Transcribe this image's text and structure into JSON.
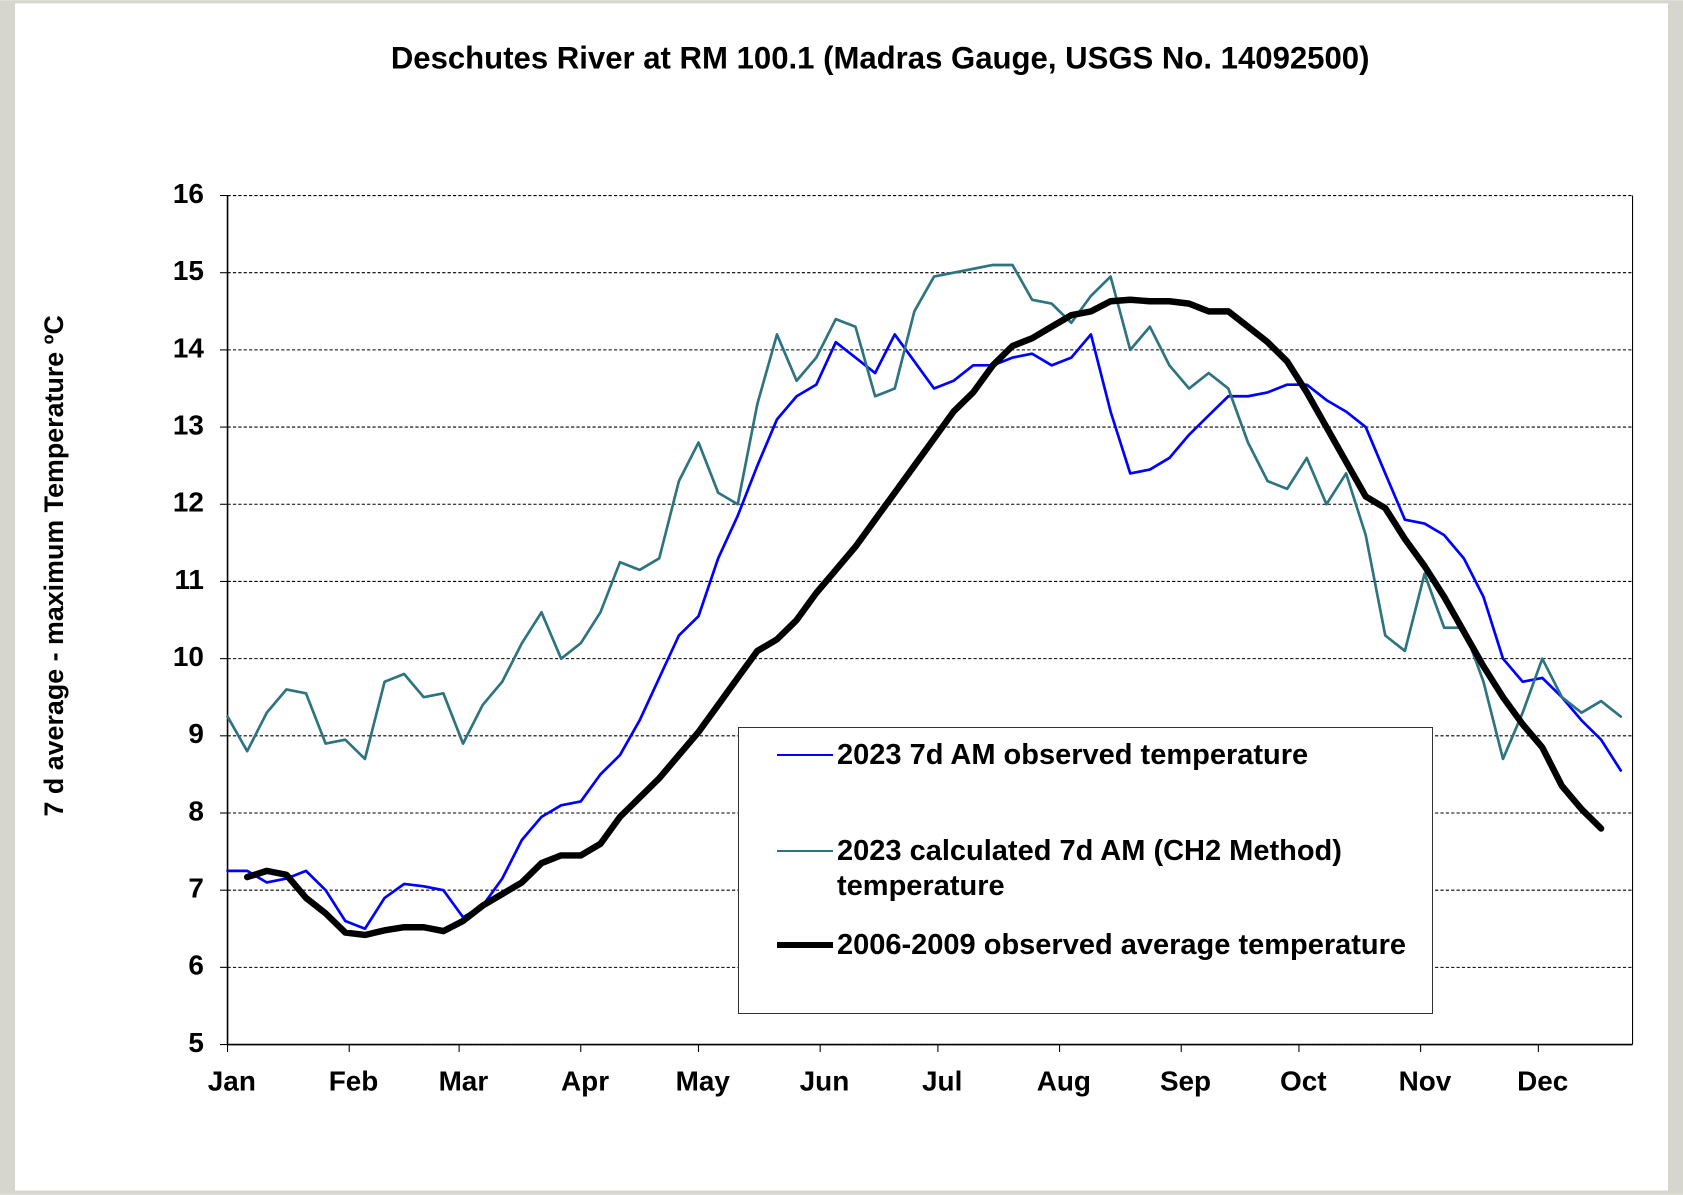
{
  "chart_data": {
    "type": "line",
    "title": "Deschutes River at RM 100.1 (Madras Gauge, USGS No. 14092500)",
    "y_label": "7 d average - maximum Temperature ºC",
    "xlim": [
      0,
      358
    ],
    "xticks": [
      {
        "value": 0,
        "label": "Jan"
      },
      {
        "value": 31,
        "label": "Feb"
      },
      {
        "value": 59,
        "label": "Mar"
      },
      {
        "value": 90,
        "label": "Apr"
      },
      {
        "value": 120,
        "label": "May"
      },
      {
        "value": 151,
        "label": "Jun"
      },
      {
        "value": 181,
        "label": "Jul"
      },
      {
        "value": 212,
        "label": "Aug"
      },
      {
        "value": 243,
        "label": "Sep"
      },
      {
        "value": 273,
        "label": "Oct"
      },
      {
        "value": 304,
        "label": "Nov"
      },
      {
        "value": 334,
        "label": "Dec"
      }
    ],
    "ylim": [
      5,
      16
    ],
    "yticks": [
      5,
      6,
      7,
      8,
      9,
      10,
      11,
      12,
      13,
      14,
      15,
      16
    ],
    "grid": true,
    "x": [
      0,
      5,
      10,
      15,
      20,
      25,
      30,
      35,
      40,
      45,
      50,
      55,
      60,
      65,
      70,
      75,
      80,
      85,
      90,
      95,
      100,
      105,
      110,
      115,
      120,
      125,
      130,
      135,
      140,
      145,
      150,
      155,
      160,
      165,
      170,
      175,
      180,
      185,
      190,
      195,
      200,
      205,
      210,
      215,
      220,
      225,
      230,
      235,
      240,
      245,
      250,
      255,
      260,
      265,
      270,
      275,
      280,
      285,
      290,
      295,
      300,
      305,
      310,
      315,
      320,
      325,
      330,
      335,
      340,
      345,
      350,
      355
    ],
    "series": [
      {
        "name": "2023 7d AM observed temperature",
        "color": "#0000ff",
        "width": 2.5,
        "values": [
          7.25,
          7.25,
          7.1,
          7.15,
          7.25,
          7.0,
          6.6,
          6.5,
          6.9,
          7.08,
          7.05,
          7.0,
          6.65,
          6.8,
          7.15,
          7.65,
          7.95,
          8.1,
          8.15,
          8.5,
          8.75,
          9.2,
          9.75,
          10.3,
          10.55,
          11.3,
          11.85,
          12.5,
          13.1,
          13.4,
          13.55,
          14.1,
          13.9,
          13.7,
          14.2,
          13.85,
          13.5,
          13.6,
          13.8,
          13.8,
          13.9,
          13.95,
          13.8,
          13.9,
          14.2,
          13.2,
          12.4,
          12.45,
          12.6,
          12.9,
          13.15,
          13.4,
          13.4,
          13.45,
          13.55,
          13.55,
          13.35,
          13.2,
          13.0,
          12.4,
          11.8,
          11.75,
          11.6,
          11.3,
          10.8,
          10.0,
          9.7,
          9.75,
          9.5,
          9.2,
          8.95,
          8.55
        ]
      },
      {
        "name": "2023 calculated 7d AM (CH2 Method) temperature",
        "color": "#2e7480",
        "width": 2.5,
        "values": [
          9.25,
          8.8,
          9.3,
          9.6,
          9.55,
          8.9,
          8.95,
          8.7,
          9.7,
          9.8,
          9.5,
          9.55,
          8.9,
          9.4,
          9.7,
          10.2,
          10.6,
          10.0,
          10.2,
          10.6,
          11.25,
          11.15,
          11.3,
          12.3,
          12.8,
          12.15,
          12.0,
          13.3,
          14.2,
          13.6,
          13.9,
          14.4,
          14.3,
          13.4,
          13.5,
          14.5,
          14.95,
          15.0,
          15.05,
          15.1,
          15.1,
          14.65,
          14.6,
          14.35,
          14.7,
          14.95,
          14.0,
          14.3,
          13.8,
          13.5,
          13.7,
          13.5,
          12.8,
          12.3,
          12.2,
          12.6,
          12.0,
          12.4,
          11.6,
          10.3,
          10.1,
          11.1,
          10.4,
          10.4,
          9.7,
          8.7,
          9.3,
          10.0,
          9.5,
          9.3,
          9.45,
          9.25
        ]
      },
      {
        "name": "2006-2009 observed average temperature",
        "color": "#000000",
        "width": 6,
        "values": [
          null,
          7.17,
          7.25,
          7.2,
          6.9,
          6.7,
          6.45,
          6.42,
          6.48,
          6.52,
          6.52,
          6.47,
          6.6,
          6.8,
          6.95,
          7.1,
          7.35,
          7.45,
          7.45,
          7.6,
          7.95,
          8.2,
          8.45,
          8.75,
          9.05,
          9.4,
          9.75,
          10.1,
          10.25,
          10.5,
          10.85,
          11.15,
          11.45,
          11.8,
          12.15,
          12.5,
          12.85,
          13.2,
          13.45,
          13.8,
          14.05,
          14.15,
          14.3,
          14.45,
          14.5,
          14.63,
          14.65,
          14.63,
          14.63,
          14.6,
          14.5,
          14.5,
          14.3,
          14.1,
          13.85,
          13.45,
          13.0,
          12.55,
          12.1,
          11.95,
          11.55,
          11.2,
          10.8,
          10.35,
          9.9,
          9.5,
          9.15,
          8.85,
          8.35,
          8.05,
          7.8,
          null
        ]
      }
    ]
  }
}
